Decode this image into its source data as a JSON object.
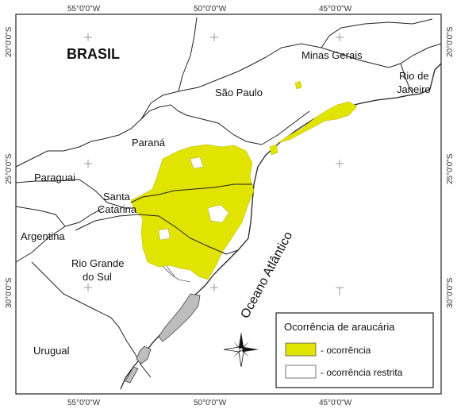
{
  "map": {
    "country_label": "BRASIL",
    "ocean_label": "Oceano Atlântico",
    "places": {
      "minas_gerais": "Minas Gerais",
      "rio_line1": "Rio de",
      "rio_line2": "Janeiro",
      "sao_paulo": "São Paulo",
      "parana": "Paraná",
      "paraguai": "Paraguai",
      "santa_catarina_line1": "Santa",
      "santa_catarina_line2": "Catarina",
      "argentina": "Argentina",
      "rgs_line1": "Rio Grande",
      "rgs_line2": "do Sul",
      "uruguai": "Urugual"
    },
    "coords": {
      "top_55": "55°0'0\"W",
      "top_50": "50°0'0\"W",
      "top_45": "45°0'0\"W",
      "bottom_55": "55°0'0\"W",
      "bottom_50": "50°0'0\"W",
      "bottom_45": "45°0'0\"W",
      "left_20": "20°0'0\"S",
      "left_25": "25°0'0\"S",
      "left_30": "30°0'0\"S",
      "right_20": "20°0'0\"S",
      "right_25": "25°0'0\"S",
      "right_30": "30°0'0\"S"
    },
    "colors": {
      "occurrence": "#e1e300",
      "lagoon": "#bdbdbd",
      "border": "#222222"
    },
    "compass_icon": "compass-rose-icon"
  },
  "legend": {
    "title": "Ocorrência de araucária",
    "items": [
      {
        "label": "- ocorrência",
        "swatch": "#e1e300"
      },
      {
        "label": "- ocorrência restrita",
        "swatch": "#ffffff"
      }
    ]
  }
}
